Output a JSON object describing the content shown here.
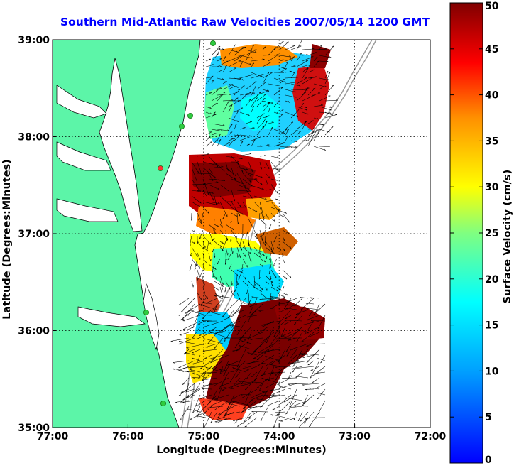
{
  "chart_data": {
    "type": "heatmap",
    "title": "Southern Mid-Atlantic Raw Velocities 2007/05/14 1200 GMT",
    "xlabel": "Longitude (Degrees:Minutes)",
    "ylabel": "Latitude (Degrees:Minutes)",
    "x_ticks": [
      {
        "value": -77,
        "label": "77:00"
      },
      {
        "value": -76,
        "label": "76:00"
      },
      {
        "value": -75,
        "label": "75:00"
      },
      {
        "value": -74,
        "label": "74:00"
      },
      {
        "value": -73,
        "label": "73:00"
      },
      {
        "value": -72,
        "label": "72:00"
      }
    ],
    "y_ticks": [
      {
        "value": 35,
        "label": "35:00"
      },
      {
        "value": 36,
        "label": "36:00"
      },
      {
        "value": 37,
        "label": "37:00"
      },
      {
        "value": 38,
        "label": "38:00"
      },
      {
        "value": 39,
        "label": "39:00"
      }
    ],
    "xlim": [
      -77,
      -72
    ],
    "ylim": [
      35,
      39
    ],
    "grid": "dotted",
    "land_color": "#5cf5a8",
    "station_color": "#2ecc40",
    "colorbar": {
      "label": "Surface Velocity (cm/s)",
      "range": [
        0,
        50
      ],
      "ticks": [
        0,
        5,
        10,
        15,
        20,
        25,
        30,
        35,
        40,
        45,
        50
      ],
      "colormap": "jet"
    },
    "speed_regions": [
      {
        "lon": [
          -74.8,
          -73.3
        ],
        "lat": [
          38.1,
          38.95
        ],
        "speed_range": [
          10,
          45
        ]
      },
      {
        "lon": [
          -75.2,
          -74.1
        ],
        "lat": [
          37.3,
          37.9
        ],
        "speed_range": [
          30,
          50
        ]
      },
      {
        "lon": [
          -75.2,
          -74.1
        ],
        "lat": [
          36.3,
          37.3
        ],
        "speed_range": [
          10,
          40
        ]
      },
      {
        "lon": [
          -75.2,
          -73.5
        ],
        "lat": [
          35.1,
          36.3
        ],
        "speed_range": [
          15,
          50
        ]
      }
    ]
  }
}
